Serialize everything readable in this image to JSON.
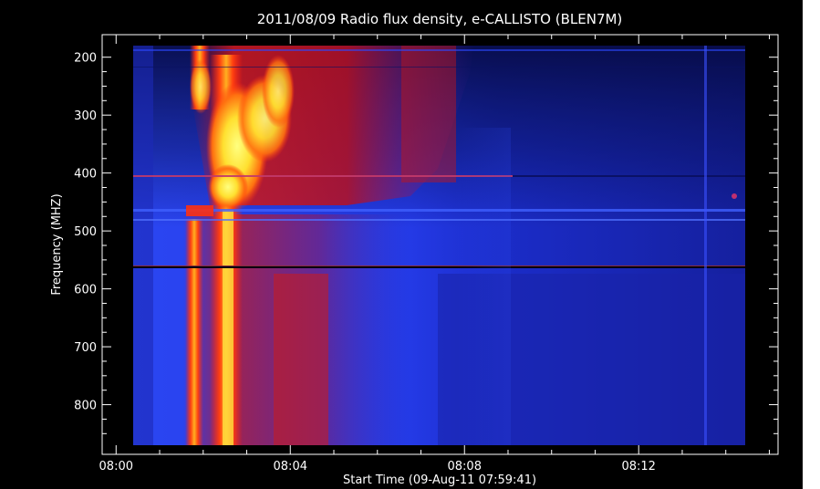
{
  "chart_data": {
    "type": "heatmap",
    "title": "2011/08/09  Radio flux density, e-CALLISTO (BLEN7M)",
    "xlabel": "Start Time (09-Aug-11 07:59:41)",
    "ylabel": "Frequency (MHZ)",
    "x_ticks": [
      "08:00",
      "08:04",
      "08:08",
      "08:12"
    ],
    "y_ticks": [
      "200",
      "300",
      "400",
      "500",
      "600",
      "700",
      "800"
    ],
    "x_range_minutes_since_0800": [
      -0.32,
      15.2
    ],
    "ylim": [
      180,
      870
    ],
    "y_inverted": true,
    "colormap": [
      "#000010",
      "#000060",
      "#1020d0",
      "#3a5cff",
      "#c01010",
      "#ff3010",
      "#ff8a10",
      "#ffff40"
    ],
    "features": {
      "burst_start": "08:01",
      "burst_peak": "08:02",
      "drifting_emission_end": "08:08",
      "horizontal_interference_mhz": [
        405,
        460,
        480,
        563
      ],
      "vertical_spike_time": "08:14"
    }
  }
}
